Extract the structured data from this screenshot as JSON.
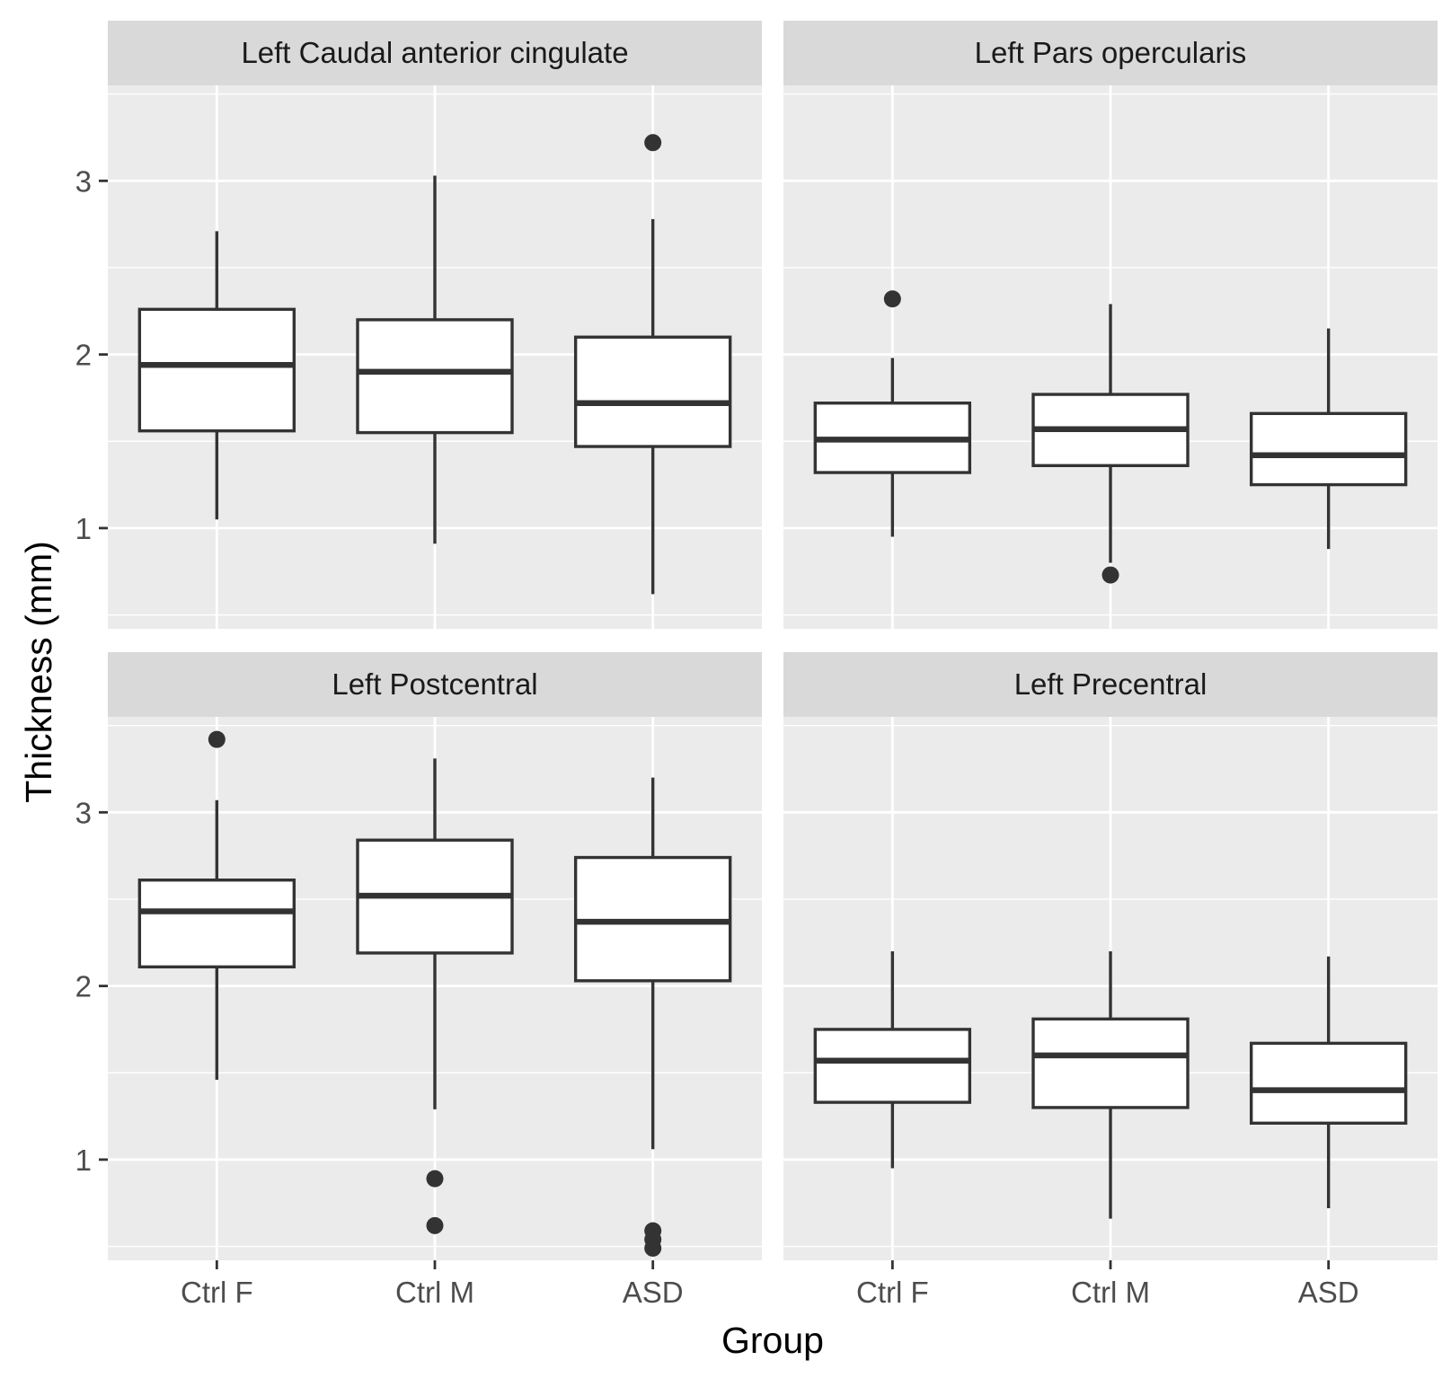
{
  "chart_data": {
    "type": "boxplot",
    "xlabel": "Group",
    "ylabel": "Thickness (mm)",
    "categories": [
      "Ctrl F",
      "Ctrl M",
      "ASD"
    ],
    "ylim": [
      0.42,
      3.55
    ],
    "yticks": [
      1,
      2,
      3
    ],
    "grid": true,
    "legend": "none",
    "facets": [
      {
        "title": "Left Caudal anterior cingulate",
        "boxes": [
          {
            "group": "Ctrl F",
            "whisker_low": 1.05,
            "q1": 1.56,
            "median": 1.94,
            "q3": 2.26,
            "whisker_high": 2.71,
            "outliers": []
          },
          {
            "group": "Ctrl M",
            "whisker_low": 0.91,
            "q1": 1.55,
            "median": 1.9,
            "q3": 2.2,
            "whisker_high": 3.03,
            "outliers": []
          },
          {
            "group": "ASD",
            "whisker_low": 0.62,
            "q1": 1.47,
            "median": 1.72,
            "q3": 2.1,
            "whisker_high": 2.78,
            "outliers": [
              3.22
            ]
          }
        ]
      },
      {
        "title": "Left Pars opercularis",
        "boxes": [
          {
            "group": "Ctrl F",
            "whisker_low": 0.95,
            "q1": 1.32,
            "median": 1.51,
            "q3": 1.72,
            "whisker_high": 1.98,
            "outliers": [
              2.32
            ]
          },
          {
            "group": "Ctrl M",
            "whisker_low": 0.8,
            "q1": 1.36,
            "median": 1.57,
            "q3": 1.77,
            "whisker_high": 2.29,
            "outliers": [
              0.73
            ]
          },
          {
            "group": "ASD",
            "whisker_low": 0.88,
            "q1": 1.25,
            "median": 1.42,
            "q3": 1.66,
            "whisker_high": 2.15,
            "outliers": []
          }
        ]
      },
      {
        "title": "Left Postcentral",
        "boxes": [
          {
            "group": "Ctrl F",
            "whisker_low": 1.46,
            "q1": 2.11,
            "median": 2.43,
            "q3": 2.61,
            "whisker_high": 3.07,
            "outliers": [
              3.42
            ]
          },
          {
            "group": "Ctrl M",
            "whisker_low": 1.29,
            "q1": 2.19,
            "median": 2.52,
            "q3": 2.84,
            "whisker_high": 3.31,
            "outliers": [
              0.89,
              0.62
            ]
          },
          {
            "group": "ASD",
            "whisker_low": 1.06,
            "q1": 2.03,
            "median": 2.37,
            "q3": 2.74,
            "whisker_high": 3.2,
            "outliers": [
              0.59,
              0.54,
              0.49
            ]
          }
        ]
      },
      {
        "title": "Left Precentral",
        "boxes": [
          {
            "group": "Ctrl F",
            "whisker_low": 0.95,
            "q1": 1.33,
            "median": 1.57,
            "q3": 1.75,
            "whisker_high": 2.2,
            "outliers": []
          },
          {
            "group": "Ctrl M",
            "whisker_low": 0.66,
            "q1": 1.3,
            "median": 1.6,
            "q3": 1.81,
            "whisker_high": 2.2,
            "outliers": []
          },
          {
            "group": "ASD",
            "whisker_low": 0.72,
            "q1": 1.21,
            "median": 1.4,
            "q3": 1.67,
            "whisker_high": 2.17,
            "outliers": []
          }
        ]
      }
    ]
  },
  "colors": {
    "panel_background": "#ebebeb",
    "strip_background": "#d9d9d9",
    "grid": "#ffffff",
    "box_outline": "#333333",
    "box_fill": "#ffffff"
  }
}
